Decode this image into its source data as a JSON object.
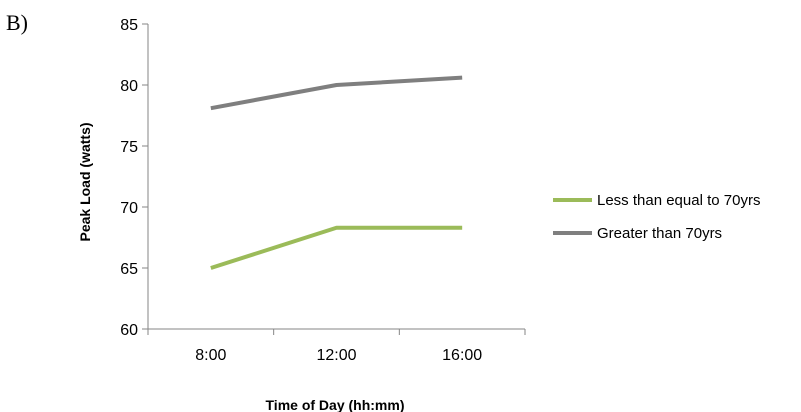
{
  "panel_label": "B)",
  "chart_data": {
    "type": "line",
    "title": "",
    "xlabel": "Time of Day (hh:mm)",
    "ylabel": "Peak Load (watts)",
    "categories": [
      "8:00",
      "12:00",
      "16:00"
    ],
    "ylim": [
      60,
      85
    ],
    "yticks": [
      60,
      65,
      70,
      75,
      80,
      85
    ],
    "grid": false,
    "legend_position": "right",
    "series": [
      {
        "name": "Less than equal to 70yrs",
        "values": [
          65.0,
          68.3,
          68.3
        ],
        "color": "#9BBB59"
      },
      {
        "name": "Greater than 70yrs",
        "values": [
          78.1,
          80.0,
          80.6
        ],
        "color": "#7F7F7F"
      }
    ]
  }
}
